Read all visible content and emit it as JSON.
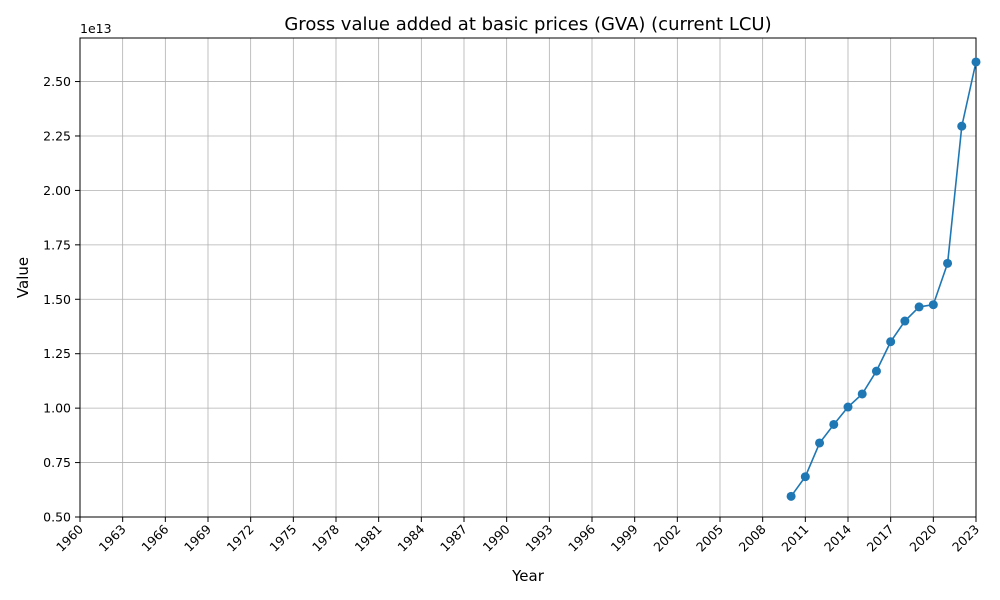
{
  "chart_data": {
    "type": "line",
    "title": "Gross value added at basic prices (GVA) (current LCU)",
    "xlabel": "Year",
    "ylabel": "Value",
    "y_multiplier_label": "1e13",
    "xlim": [
      1960,
      2023
    ],
    "ylim": [
      0.5,
      2.7
    ],
    "x_ticks": [
      "1960",
      "1963",
      "1966",
      "1969",
      "1972",
      "1975",
      "1978",
      "1981",
      "1984",
      "1987",
      "1990",
      "1993",
      "1996",
      "1999",
      "2002",
      "2005",
      "2008",
      "2011",
      "2014",
      "2017",
      "2020",
      "2023"
    ],
    "y_ticks": [
      "0.50",
      "0.75",
      "1.00",
      "1.25",
      "1.50",
      "1.75",
      "2.00",
      "2.25",
      "2.50"
    ],
    "grid": true,
    "line_color": "#1f77b4",
    "series": [
      {
        "x": [
          2010,
          2011,
          2012,
          2013,
          2014,
          2015,
          2016,
          2017,
          2018,
          2019,
          2020,
          2021,
          2022,
          2023
        ],
        "values": [
          0.595,
          0.685,
          0.84,
          0.925,
          1.005,
          1.065,
          1.17,
          1.305,
          1.4,
          1.465,
          1.475,
          1.665,
          2.295,
          2.59
        ]
      }
    ]
  }
}
